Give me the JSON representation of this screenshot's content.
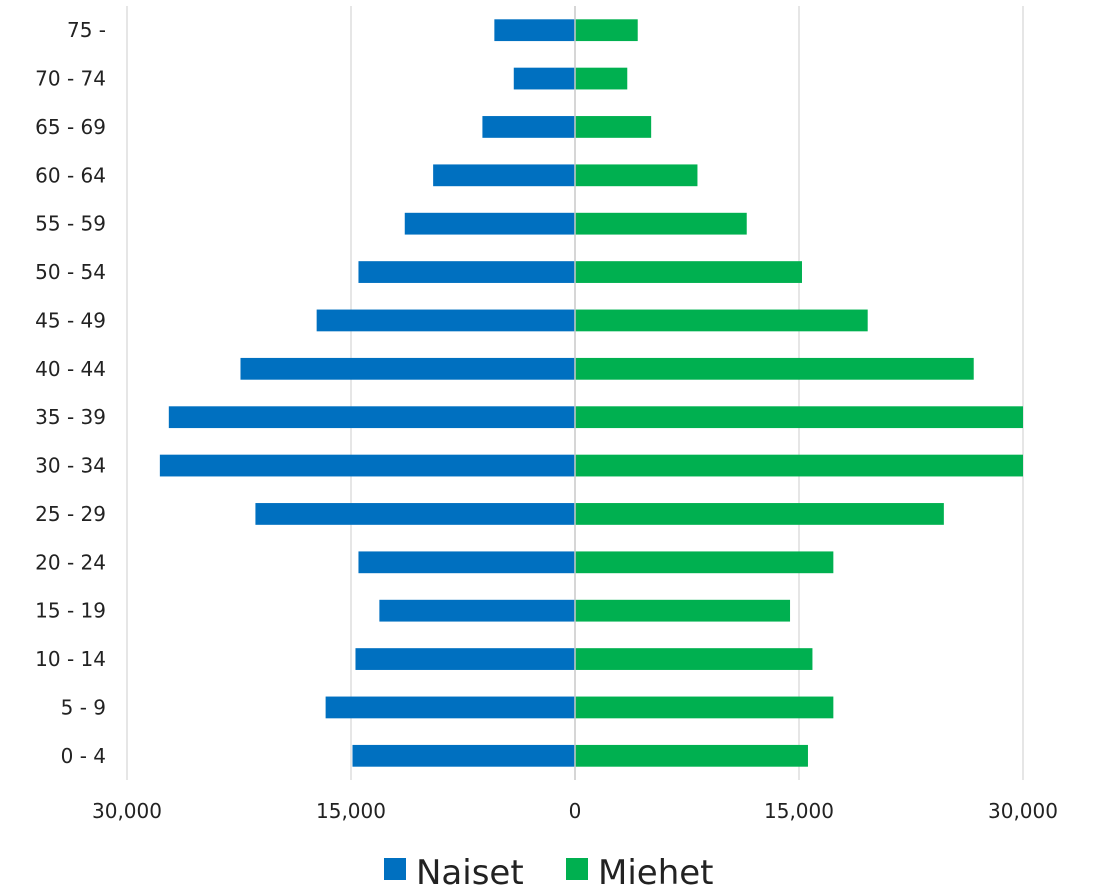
{
  "chart_data": {
    "type": "bar",
    "orientation": "horizontal",
    "subtype": "population-pyramid",
    "categories": [
      "0 - 4",
      "5 - 9",
      "10 - 14",
      "15 - 19",
      "20 - 24",
      "25 - 29",
      "30 - 34",
      "35 - 39",
      "40 - 44",
      "45 - 49",
      "50 - 54",
      "55 - 59",
      "60 - 64",
      "65 - 69",
      "70 - 74",
      "75 -"
    ],
    "series": [
      {
        "name": "Naiset",
        "color": "#0070c0",
        "side": "left",
        "values": [
          14900,
          16700,
          14700,
          13100,
          14500,
          21400,
          27800,
          27200,
          22400,
          17300,
          14500,
          11400,
          9500,
          6200,
          4100,
          5400
        ]
      },
      {
        "name": "Miehet",
        "color": "#00b050",
        "side": "right",
        "values": [
          15600,
          17300,
          15900,
          14400,
          17300,
          24700,
          30000,
          30000,
          26700,
          19600,
          15200,
          11500,
          8200,
          5100,
          3500,
          4200
        ]
      }
    ],
    "xlim": [
      -30000,
      30000
    ],
    "x_ticks": [
      -30000,
      -15000,
      0,
      15000,
      30000
    ],
    "x_tick_labels": [
      "30,000",
      "15,000",
      "0",
      "15,000",
      "30,000"
    ],
    "grid": "vertical",
    "legend_position": "bottom-center",
    "title": "",
    "xlabel": "",
    "ylabel": ""
  }
}
